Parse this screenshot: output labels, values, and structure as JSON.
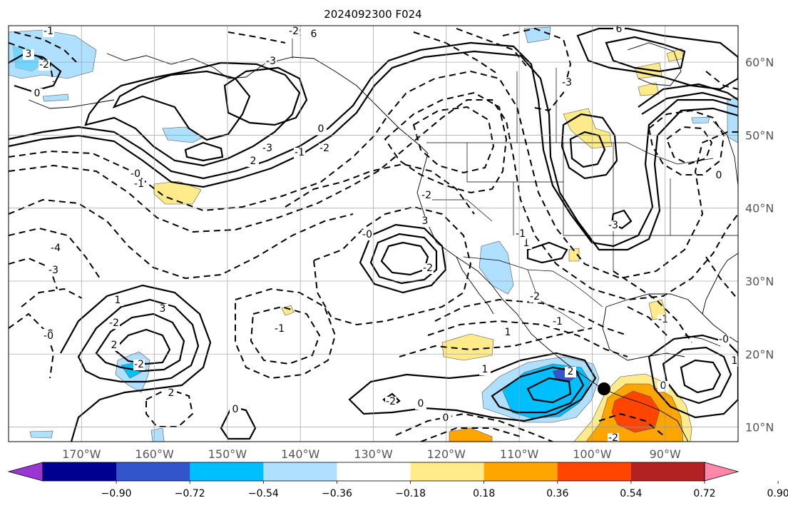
{
  "title": "2024092300 F024",
  "map": {
    "lon_labels": [
      "170°W",
      "160°W",
      "150°W",
      "140°W",
      "130°W",
      "120°W",
      "110°W",
      "100°W",
      "90°W"
    ],
    "lat_labels": [
      "60°N",
      "50°N",
      "40°N",
      "30°N",
      "20°N",
      "10°N"
    ],
    "lon_range": [
      -180,
      -80
    ],
    "lat_range": [
      8,
      65
    ],
    "grid": true,
    "contour_labels": [
      "3",
      "-2",
      "0",
      "-1",
      "-2",
      "6",
      "-3",
      "-2",
      "6",
      "-3",
      "0",
      "2",
      "-0",
      "-3",
      "-2",
      "-1",
      "-2",
      "3",
      "1",
      "-0",
      "-4",
      "-3",
      "-1",
      "-0",
      "-2",
      "3",
      "-2",
      "1",
      "2",
      "0",
      "-1",
      "0",
      "-0",
      "-2",
      "-1",
      "1",
      "0",
      "-2",
      "1",
      "-2",
      "2",
      "-1",
      "2",
      "-2",
      "0",
      "-1",
      "1",
      "-2",
      "-3",
      "-1",
      "-3",
      "0",
      "-0"
    ],
    "marker": "black-dot"
  },
  "colorbar": {
    "colors": [
      "#9a37d4",
      "#000090",
      "#3355cc",
      "#00bfff",
      "#b0e0ff",
      "#ffffff",
      "#ffeb8a",
      "#ffa500",
      "#ff4500",
      "#b22222",
      "#ff88aa"
    ],
    "tick_labels": [
      "−0.90",
      "−0.72",
      "−0.54",
      "−0.36",
      "−0.18",
      "0.18",
      "0.36",
      "0.54",
      "0.72",
      "0.90"
    ]
  }
}
